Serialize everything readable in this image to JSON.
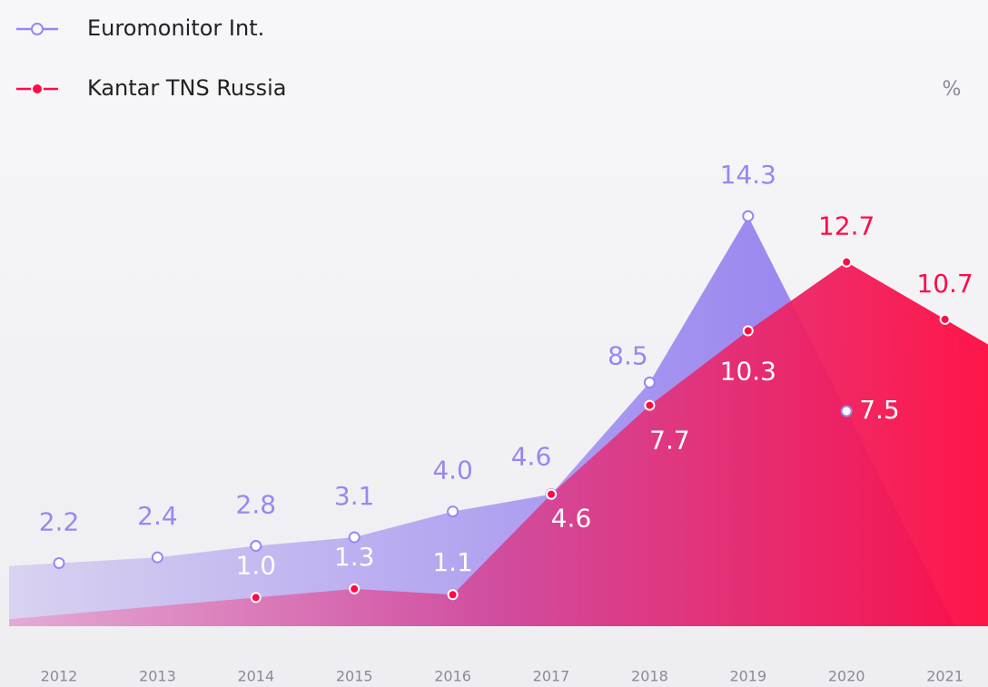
{
  "chart_data": {
    "type": "area",
    "ylabel": "%",
    "categories": [
      "2012",
      "2013",
      "2014",
      "2015",
      "2016",
      "2017",
      "2018",
      "2019",
      "2020",
      "2021"
    ],
    "series": [
      {
        "name": "Euromonitor Int.",
        "color": "#9a86ef",
        "values": [
          2.2,
          2.4,
          2.8,
          3.1,
          4.0,
          4.6,
          8.5,
          14.3,
          7.5,
          null
        ],
        "value_labels": [
          "2.2",
          "2.4",
          "2.8",
          "3.1",
          "4.0",
          "4.6",
          "8.5",
          "14.3",
          "7.5",
          null
        ]
      },
      {
        "name": "Kantar TNS Russia",
        "color": "#ff0a47",
        "values": [
          null,
          null,
          1.0,
          1.3,
          1.1,
          4.6,
          7.7,
          10.3,
          12.7,
          10.7
        ],
        "value_labels": [
          null,
          null,
          "1.0",
          "1.3",
          "1.1",
          "4.6",
          "7.7",
          "10.3",
          "12.7",
          "10.7"
        ]
      }
    ],
    "ylim": [
      0,
      15
    ],
    "legend": "top-left"
  }
}
